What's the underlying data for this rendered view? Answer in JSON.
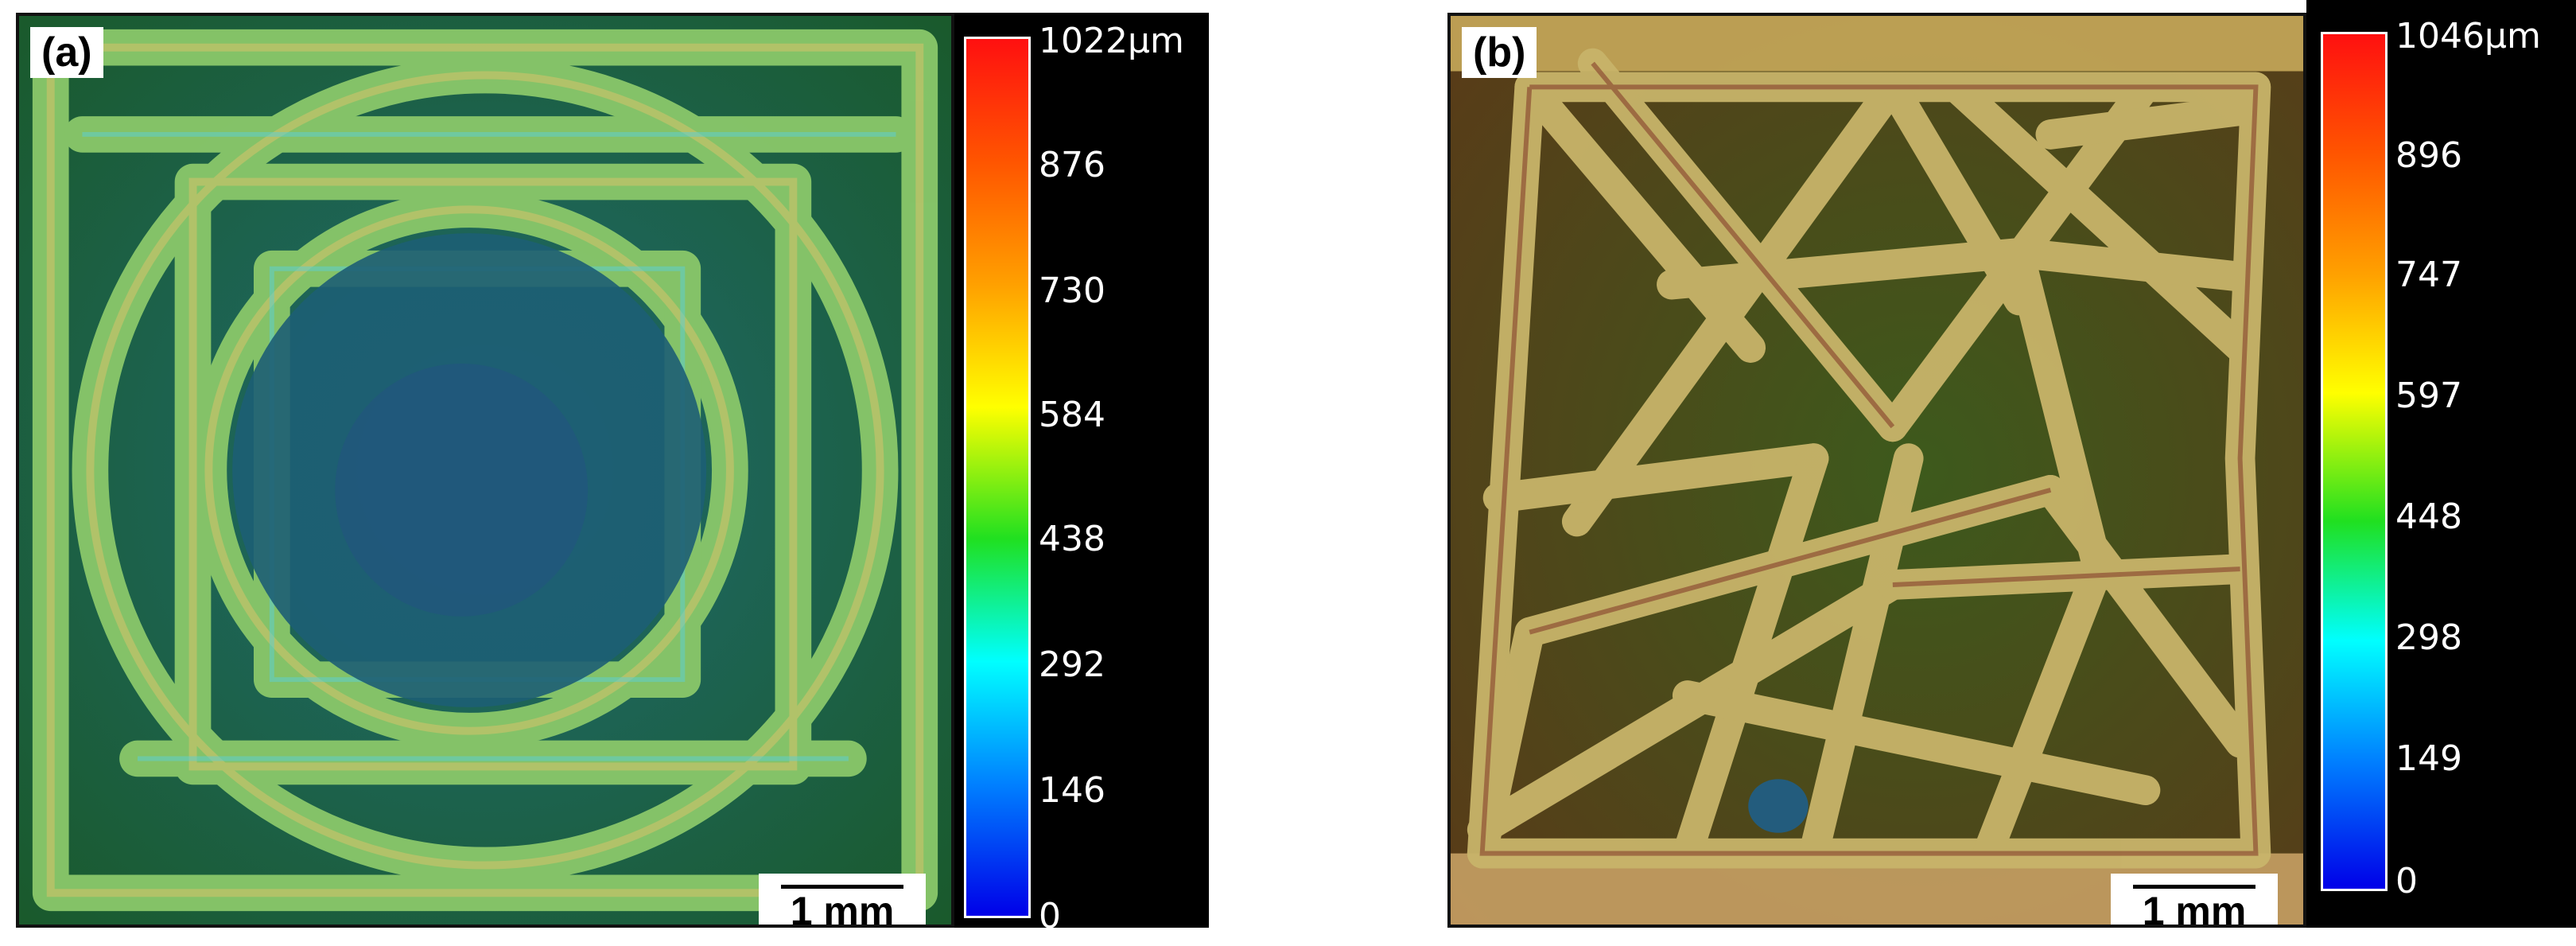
{
  "panels": [
    {
      "label": "(a)",
      "scale_bar": "1 mm",
      "colorbar": {
        "ticks": [
          "1022µm",
          "876",
          "730",
          "584",
          "438",
          "292",
          "146",
          "0"
        ]
      }
    },
    {
      "label": "(b)",
      "scale_bar": "1 mm",
      "colorbar": {
        "ticks": [
          "1046µm",
          "896",
          "747",
          "597",
          "448",
          "298",
          "149",
          "0"
        ]
      }
    }
  ],
  "colors": {
    "high": "#ff1010",
    "mid": "#20e020",
    "low": "#0000e8",
    "frame": "#000000"
  }
}
